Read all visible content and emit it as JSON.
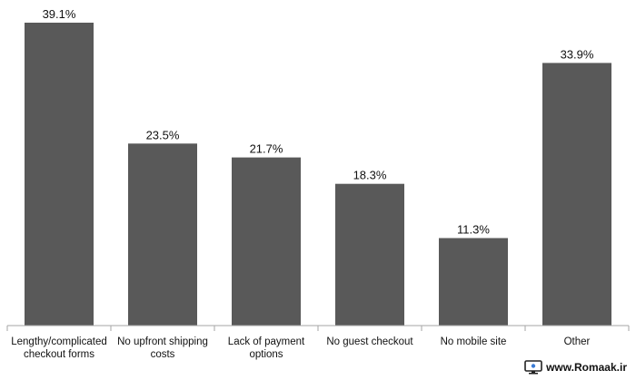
{
  "chart_data": {
    "type": "bar",
    "categories": [
      [
        "Lengthy/complicated",
        "checkout forms"
      ],
      [
        "No upfront shipping",
        "costs"
      ],
      [
        "Lack of payment",
        "options"
      ],
      [
        "No guest checkout"
      ],
      [
        "No mobile site"
      ],
      [
        "Other"
      ]
    ],
    "values": [
      39.1,
      23.5,
      21.7,
      18.3,
      11.3,
      33.9
    ],
    "value_labels": [
      "39.1%",
      "23.5%",
      "21.7%",
      "18.3%",
      "11.3%",
      "33.9%"
    ],
    "title": "",
    "xlabel": "",
    "ylabel": "",
    "ylim": [
      0,
      40
    ],
    "grid": false,
    "legend": "none",
    "bar_color": "#595959",
    "axis_color": "#a6a6a6"
  },
  "watermark": {
    "text": "www.Romaak.ir",
    "icon": "monitor-icon"
  }
}
